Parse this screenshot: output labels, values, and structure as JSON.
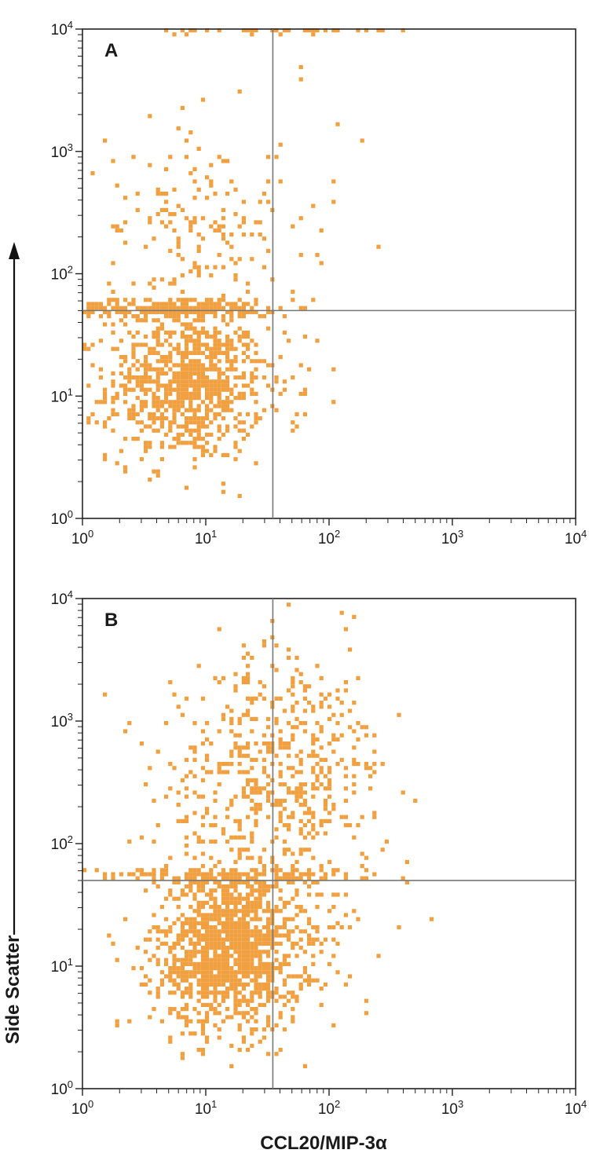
{
  "chart_data": [
    {
      "type": "scatter",
      "panel_label": "A",
      "x_scale": "log",
      "y_scale": "log",
      "xlim": [
        1,
        10000
      ],
      "ylim": [
        1,
        10000
      ],
      "x_ticks": [
        1,
        10,
        100,
        1000,
        10000
      ],
      "y_ticks": [
        1,
        10,
        100,
        1000,
        10000
      ],
      "gate_x": 35,
      "gate_y": 50,
      "marker_color": "#f0a040",
      "clusters": [
        {
          "cx": 7,
          "cy": 12,
          "sx": 0.32,
          "sy": 0.3,
          "n": 900
        },
        {
          "cx": 6,
          "cy": 52,
          "sx": 0.45,
          "sy": 0.04,
          "n": 300
        },
        {
          "cx": 8,
          "cy": 250,
          "sx": 0.35,
          "sy": 0.42,
          "n": 160
        },
        {
          "cx": 50,
          "cy": 200,
          "sx": 0.35,
          "sy": 0.55,
          "n": 25
        },
        {
          "cx": 50,
          "cy": 20,
          "sx": 0.3,
          "sy": 0.3,
          "n": 15
        },
        {
          "cx": 40,
          "cy": 9500,
          "sx": 0.55,
          "sy": 0.008,
          "n": 40
        }
      ]
    },
    {
      "type": "scatter",
      "panel_label": "B",
      "x_scale": "log",
      "y_scale": "log",
      "xlim": [
        1,
        10000
      ],
      "ylim": [
        1,
        10000
      ],
      "x_ticks": [
        1,
        10,
        100,
        1000,
        10000
      ],
      "y_ticks": [
        1,
        10,
        100,
        1000,
        10000
      ],
      "gate_x": 35,
      "gate_y": 50,
      "marker_color": "#f0a040",
      "clusters": [
        {
          "cx": 15,
          "cy": 13,
          "sx": 0.3,
          "sy": 0.32,
          "n": 1300
        },
        {
          "cx": 25,
          "cy": 300,
          "sx": 0.4,
          "sy": 0.45,
          "n": 350
        },
        {
          "cx": 60,
          "cy": 400,
          "sx": 0.35,
          "sy": 0.5,
          "n": 250
        },
        {
          "cx": 12,
          "cy": 55,
          "sx": 0.6,
          "sy": 0.03,
          "n": 150
        },
        {
          "cx": 80,
          "cy": 20,
          "sx": 0.35,
          "sy": 0.35,
          "n": 60
        }
      ]
    }
  ],
  "axes": {
    "xlabel": "CCL20/MIP-3α",
    "ylabel": "Side Scatter",
    "tick_mantissa": "10",
    "tick_exponents": [
      "0",
      "1",
      "2",
      "3",
      "4"
    ]
  }
}
